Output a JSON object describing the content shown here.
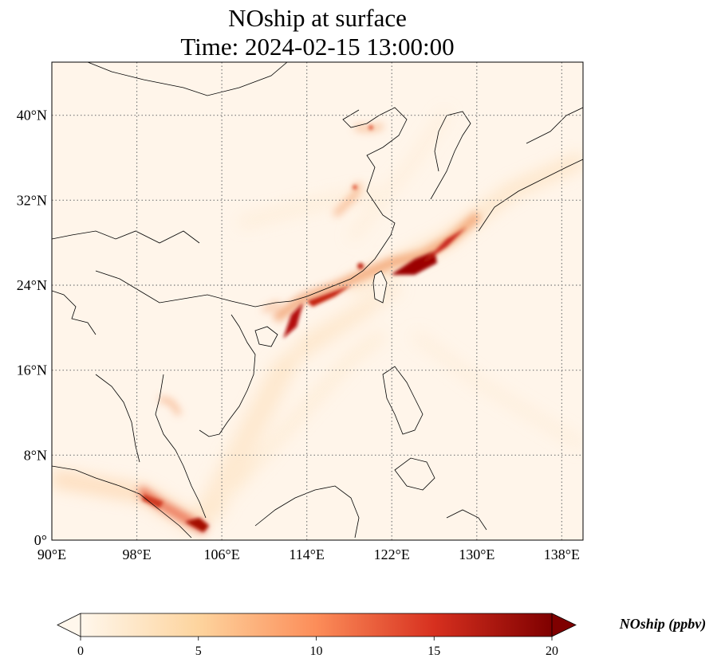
{
  "title_line1": "NOship at surface",
  "title_line2": "Time: 2024-02-15 13:00:00",
  "map": {
    "lon_range": [
      90,
      140
    ],
    "lat_range": [
      0,
      45
    ],
    "lon_ticks": [
      "90°E",
      "98°E",
      "106°E",
      "114°E",
      "122°E",
      "130°E",
      "138°E"
    ],
    "lat_ticks": [
      "0°",
      "8°N",
      "16°N",
      "24°N",
      "32°N",
      "40°N"
    ],
    "gridlines": "dotted",
    "background_color": "#fff5ea"
  },
  "colorbar": {
    "label": "NOship (ppbv)",
    "ticks": [
      "0",
      "5",
      "10",
      "15",
      "20"
    ],
    "range": [
      0,
      20
    ],
    "extend": "both",
    "colormap": "OrRd",
    "stops": [
      "#fff7ec",
      "#fdd49e",
      "#fc8d59",
      "#d7301f",
      "#7f0000"
    ]
  }
}
